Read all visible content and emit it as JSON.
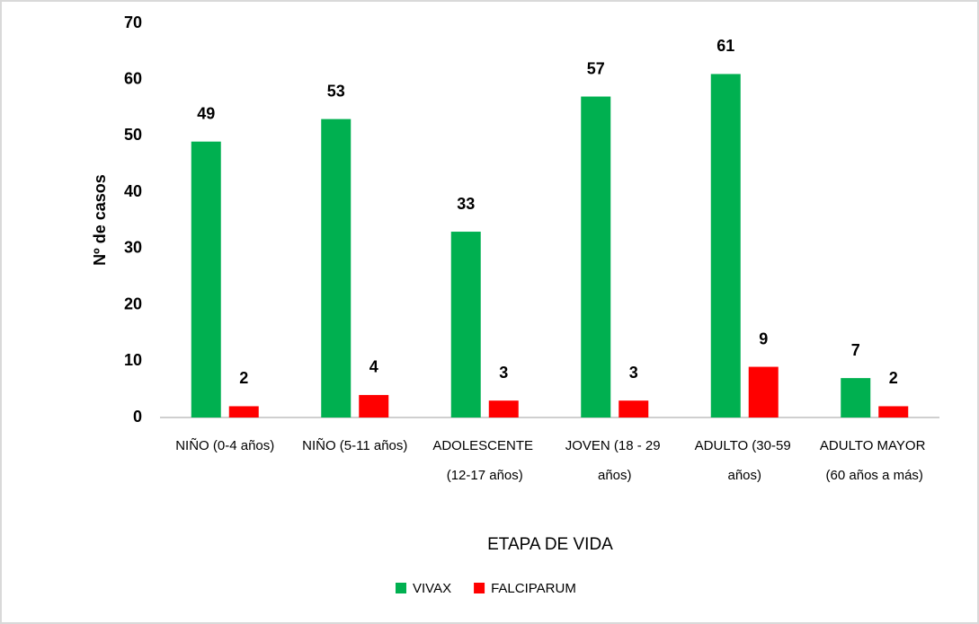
{
  "chart_data": {
    "type": "bar",
    "y_label": "Nº de casos",
    "x_label": "ETAPA DE VIDA",
    "categories": [
      "NIÑO (0-4 años)",
      "NIÑO (5-11 años)",
      "ADOLESCENTE (12-17 años)",
      "JOVEN (18 - 29 años)",
      "ADULTO (30-59 años)",
      "ADULTO MAYOR (60 años a más)"
    ],
    "series": [
      {
        "name": "VIVAX",
        "color": "#00b050",
        "values": [
          49,
          53,
          33,
          57,
          61,
          7
        ]
      },
      {
        "name": "FALCIPARUM",
        "color": "#ff0000",
        "values": [
          2,
          4,
          3,
          3,
          9,
          2
        ]
      }
    ],
    "ylim": [
      0,
      70
    ],
    "yticks": [
      0,
      10,
      20,
      30,
      40,
      50,
      60,
      70
    ],
    "grid": false,
    "legend": "bottom"
  }
}
